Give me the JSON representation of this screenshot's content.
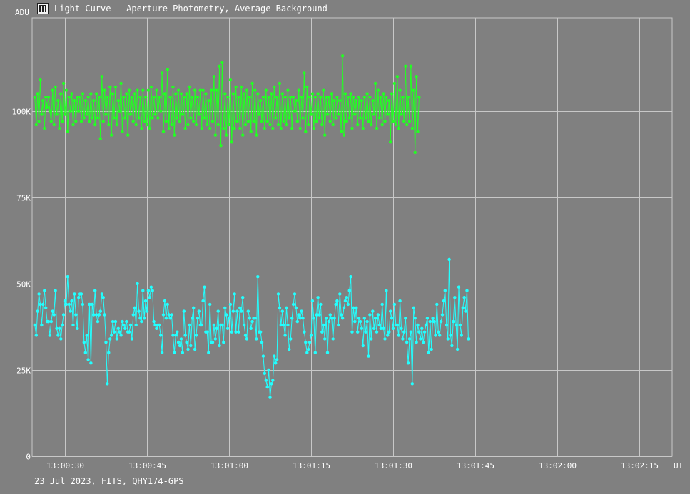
{
  "window": {
    "title": "Light Curve - Aperture Photometry, Average Background"
  },
  "footer": {
    "text": "23 Jul 2023, FITS, QHY174-GPS"
  },
  "chart_data": {
    "type": "line",
    "title": "Light Curve - Aperture Photometry, Average Background",
    "ylabel": "ADU",
    "xlabel": "UT",
    "ylim": [
      0,
      127000
    ],
    "xlim": [
      24.0,
      141.0
    ],
    "x_ticks": [
      {
        "x": 30,
        "label": "13:00:30"
      },
      {
        "x": 45,
        "label": "13:00:45"
      },
      {
        "x": 60,
        "label": "13:01:00"
      },
      {
        "x": 75,
        "label": "13:01:15"
      },
      {
        "x": 90,
        "label": "13:01:30"
      },
      {
        "x": 105,
        "label": "13:01:45"
      },
      {
        "x": 120,
        "label": "13:02:00"
      },
      {
        "x": 135,
        "label": "13:02:15"
      }
    ],
    "y_ticks": [
      {
        "y": 0,
        "label": "0"
      },
      {
        "y": 25000,
        "label": "25K"
      },
      {
        "y": 50000,
        "label": "50K"
      },
      {
        "y": 75000,
        "label": "75K"
      },
      {
        "y": 100000,
        "label": "100K"
      }
    ],
    "grid": true,
    "colors": {
      "background": "#808080",
      "grid": "#c8c8c8",
      "series_1": "#22ff22",
      "series_2": "#22ffff"
    },
    "series": [
      {
        "color": "#22ff22",
        "x0": 24.5,
        "dx": 0.25,
        "values": [
          104000,
          96000,
          105000,
          97000,
          109000,
          99000,
          103000,
          95000,
          104000,
          101000,
          104000,
          100000,
          97000,
          106000,
          96000,
          107000,
          99000,
          103000,
          95000,
          105000,
          97000,
          108000,
          99000,
          106000,
          94000,
          104000,
          100000,
          105000,
          96000,
          103000,
          97000,
          104000,
          100000,
          104000,
          97000,
          105000,
          98000,
          103000,
          99000,
          104000,
          97000,
          105000,
          98000,
          103000,
          96000,
          105000,
          98000,
          104000,
          92000,
          110000,
          97000,
          106000,
          99000,
          104000,
          96000,
          107000,
          93000,
          105000,
          98000,
          107000,
          96000,
          103000,
          100000,
          108000,
          94000,
          104000,
          98000,
          105000,
          93000,
          106000,
          99000,
          104000,
          97000,
          105000,
          96000,
          106000,
          98000,
          104000,
          95000,
          106000,
          97000,
          104000,
          96000,
          106000,
          95000,
          107000,
          98000,
          104000,
          99000,
          106000,
          98000,
          104000,
          100000,
          111000,
          94000,
          105000,
          97000,
          112000,
          95000,
          104000,
          96000,
          107000,
          93000,
          105000,
          98000,
          106000,
          97000,
          105000,
          99000,
          104000,
          95000,
          105000,
          96000,
          107000,
          98000,
          104000,
          97000,
          106000,
          96000,
          104000,
          99000,
          106000,
          95000,
          106000,
          98000,
          105000,
          96000,
          103000,
          95000,
          106000,
          97000,
          110000,
          93000,
          106000,
          96000,
          113000,
          90000,
          114000,
          95000,
          105000,
          93000,
          104000,
          96000,
          109000,
          91000,
          105000,
          95000,
          107000,
          97000,
          104000,
          95000,
          107000,
          93000,
          105000,
          96000,
          106000,
          97000,
          104000,
          94000,
          108000,
          97000,
          106000,
          93000,
          105000,
          99000,
          103000,
          97000,
          104000,
          95000,
          106000,
          97000,
          104000,
          96000,
          105000,
          95000,
          107000,
          98000,
          104000,
          96000,
          108000,
          95000,
          105000,
          97000,
          104000,
          96000,
          106000,
          98000,
          104000,
          95000,
          104000,
          100000,
          103000,
          97000,
          106000,
          95000,
          104000,
          98000,
          111000,
          94000,
          107000,
          96000,
          104000,
          99000,
          105000,
          95000,
          104000,
          97000,
          105000,
          98000,
          104000,
          96000,
          106000,
          93000,
          104000,
          99000,
          104000,
          97000,
          105000,
          96000,
          103000,
          98000,
          104000,
          99000,
          103000,
          94000,
          116000,
          93000,
          105000,
          97000,
          104000,
          98000,
          105000,
          95000,
          104000,
          99000,
          103000,
          96000,
          104000,
          98000,
          103000,
          95000,
          104000,
          98000,
          105000,
          97000,
          104000,
          96000,
          103000,
          99000,
          108000,
          95000,
          106000,
          98000,
          104000,
          96000,
          105000,
          97000,
          104000,
          99000,
          103000,
          91000,
          105000,
          97000,
          108000,
          96000,
          110000,
          95000,
          106000,
          99000,
          104000,
          97000,
          113000,
          96000,
          104000,
          97000,
          113000,
          95000,
          106000,
          88000,
          110000,
          94000,
          104000
        ]
      },
      {
        "color": "#22ffff",
        "x0": 24.5,
        "dx": 0.25,
        "values": [
          38000,
          35000,
          42000,
          47000,
          44000,
          38000,
          44000,
          48000,
          43000,
          39000,
          39000,
          35000,
          39000,
          42000,
          41000,
          48000,
          37000,
          35000,
          37000,
          34000,
          38000,
          41000,
          45000,
          44000,
          52000,
          44000,
          42000,
          45000,
          38000,
          47000,
          41000,
          37000,
          46000,
          47000,
          47000,
          44000,
          33000,
          30000,
          35000,
          28000,
          44000,
          27000,
          44000,
          41000,
          48000,
          41000,
          39000,
          41000,
          42000,
          47000,
          46000,
          41000,
          33000,
          21000,
          30000,
          34000,
          35000,
          39000,
          36000,
          39000,
          34000,
          37000,
          36000,
          35000,
          39000,
          38000,
          37000,
          39000,
          36000,
          36000,
          38000,
          34000,
          41000,
          43000,
          38000,
          50000,
          42000,
          40000,
          39000,
          48000,
          40000,
          45000,
          42000,
          48000,
          46000,
          49000,
          48000,
          39000,
          38000,
          37000,
          38000,
          38000,
          35000,
          30000,
          41000,
          45000,
          40000,
          44000,
          41000,
          40000,
          41000,
          35000,
          30000,
          35000,
          36000,
          33000,
          32000,
          34000,
          30000,
          42000,
          35000,
          33000,
          31000,
          38000,
          32000,
          40000,
          43000,
          31000,
          35000,
          40000,
          42000,
          38000,
          38000,
          45000,
          49000,
          36000,
          36000,
          30000,
          44000,
          33000,
          33000,
          38000,
          34000,
          37000,
          42000,
          32000,
          38000,
          38000,
          33000,
          43000,
          41000,
          37000,
          40000,
          44000,
          36000,
          42000,
          47000,
          36000,
          42000,
          36000,
          43000,
          42000,
          46000,
          38000,
          35000,
          34000,
          42000,
          40000,
          37000,
          39000,
          40000,
          40000,
          34000,
          52000,
          36000,
          36000,
          33000,
          29000,
          24000,
          22000,
          20000,
          25000,
          17000,
          21000,
          22000,
          29000,
          27000,
          28000,
          47000,
          43000,
          38000,
          42000,
          38000,
          35000,
          43000,
          38000,
          31000,
          34000,
          40000,
          44000,
          47000,
          43000,
          39000,
          41000,
          40000,
          42000,
          40000,
          36000,
          33000,
          30000,
          31000,
          33000,
          35000,
          45000,
          40000,
          30000,
          41000,
          46000,
          41000,
          44000,
          36000,
          38000,
          34000,
          40000,
          30000,
          39000,
          41000,
          40000,
          34000,
          40000,
          44000,
          45000,
          38000,
          47000,
          41000,
          40000,
          43000,
          45000,
          46000,
          44000,
          48000,
          52000,
          36000,
          43000,
          39000,
          43000,
          36000,
          40000,
          39000,
          37000,
          32000,
          40000,
          36000,
          39000,
          29000,
          41000,
          34000,
          42000,
          37000,
          40000,
          36000,
          41000,
          38000,
          37000,
          44000,
          37000,
          34000,
          48000,
          35000,
          36000,
          42000,
          40000,
          37000,
          44000,
          38000,
          38000,
          35000,
          45000,
          37000,
          34000,
          36000,
          40000,
          33000,
          27000,
          34000,
          36000,
          21000,
          43000,
          40000,
          33000,
          38000,
          36000,
          34000,
          37000,
          33000,
          36000,
          38000,
          40000,
          30000,
          39000,
          31000,
          40000,
          39000,
          35000,
          44000,
          36000,
          35000,
          39000,
          41000,
          45000,
          48000,
          38000,
          34000,
          57000,
          35000,
          32000,
          39000,
          46000,
          38000,
          31000,
          49000,
          38000,
          35000,
          43000,
          46000,
          42000,
          48000,
          34000
        ]
      }
    ]
  }
}
